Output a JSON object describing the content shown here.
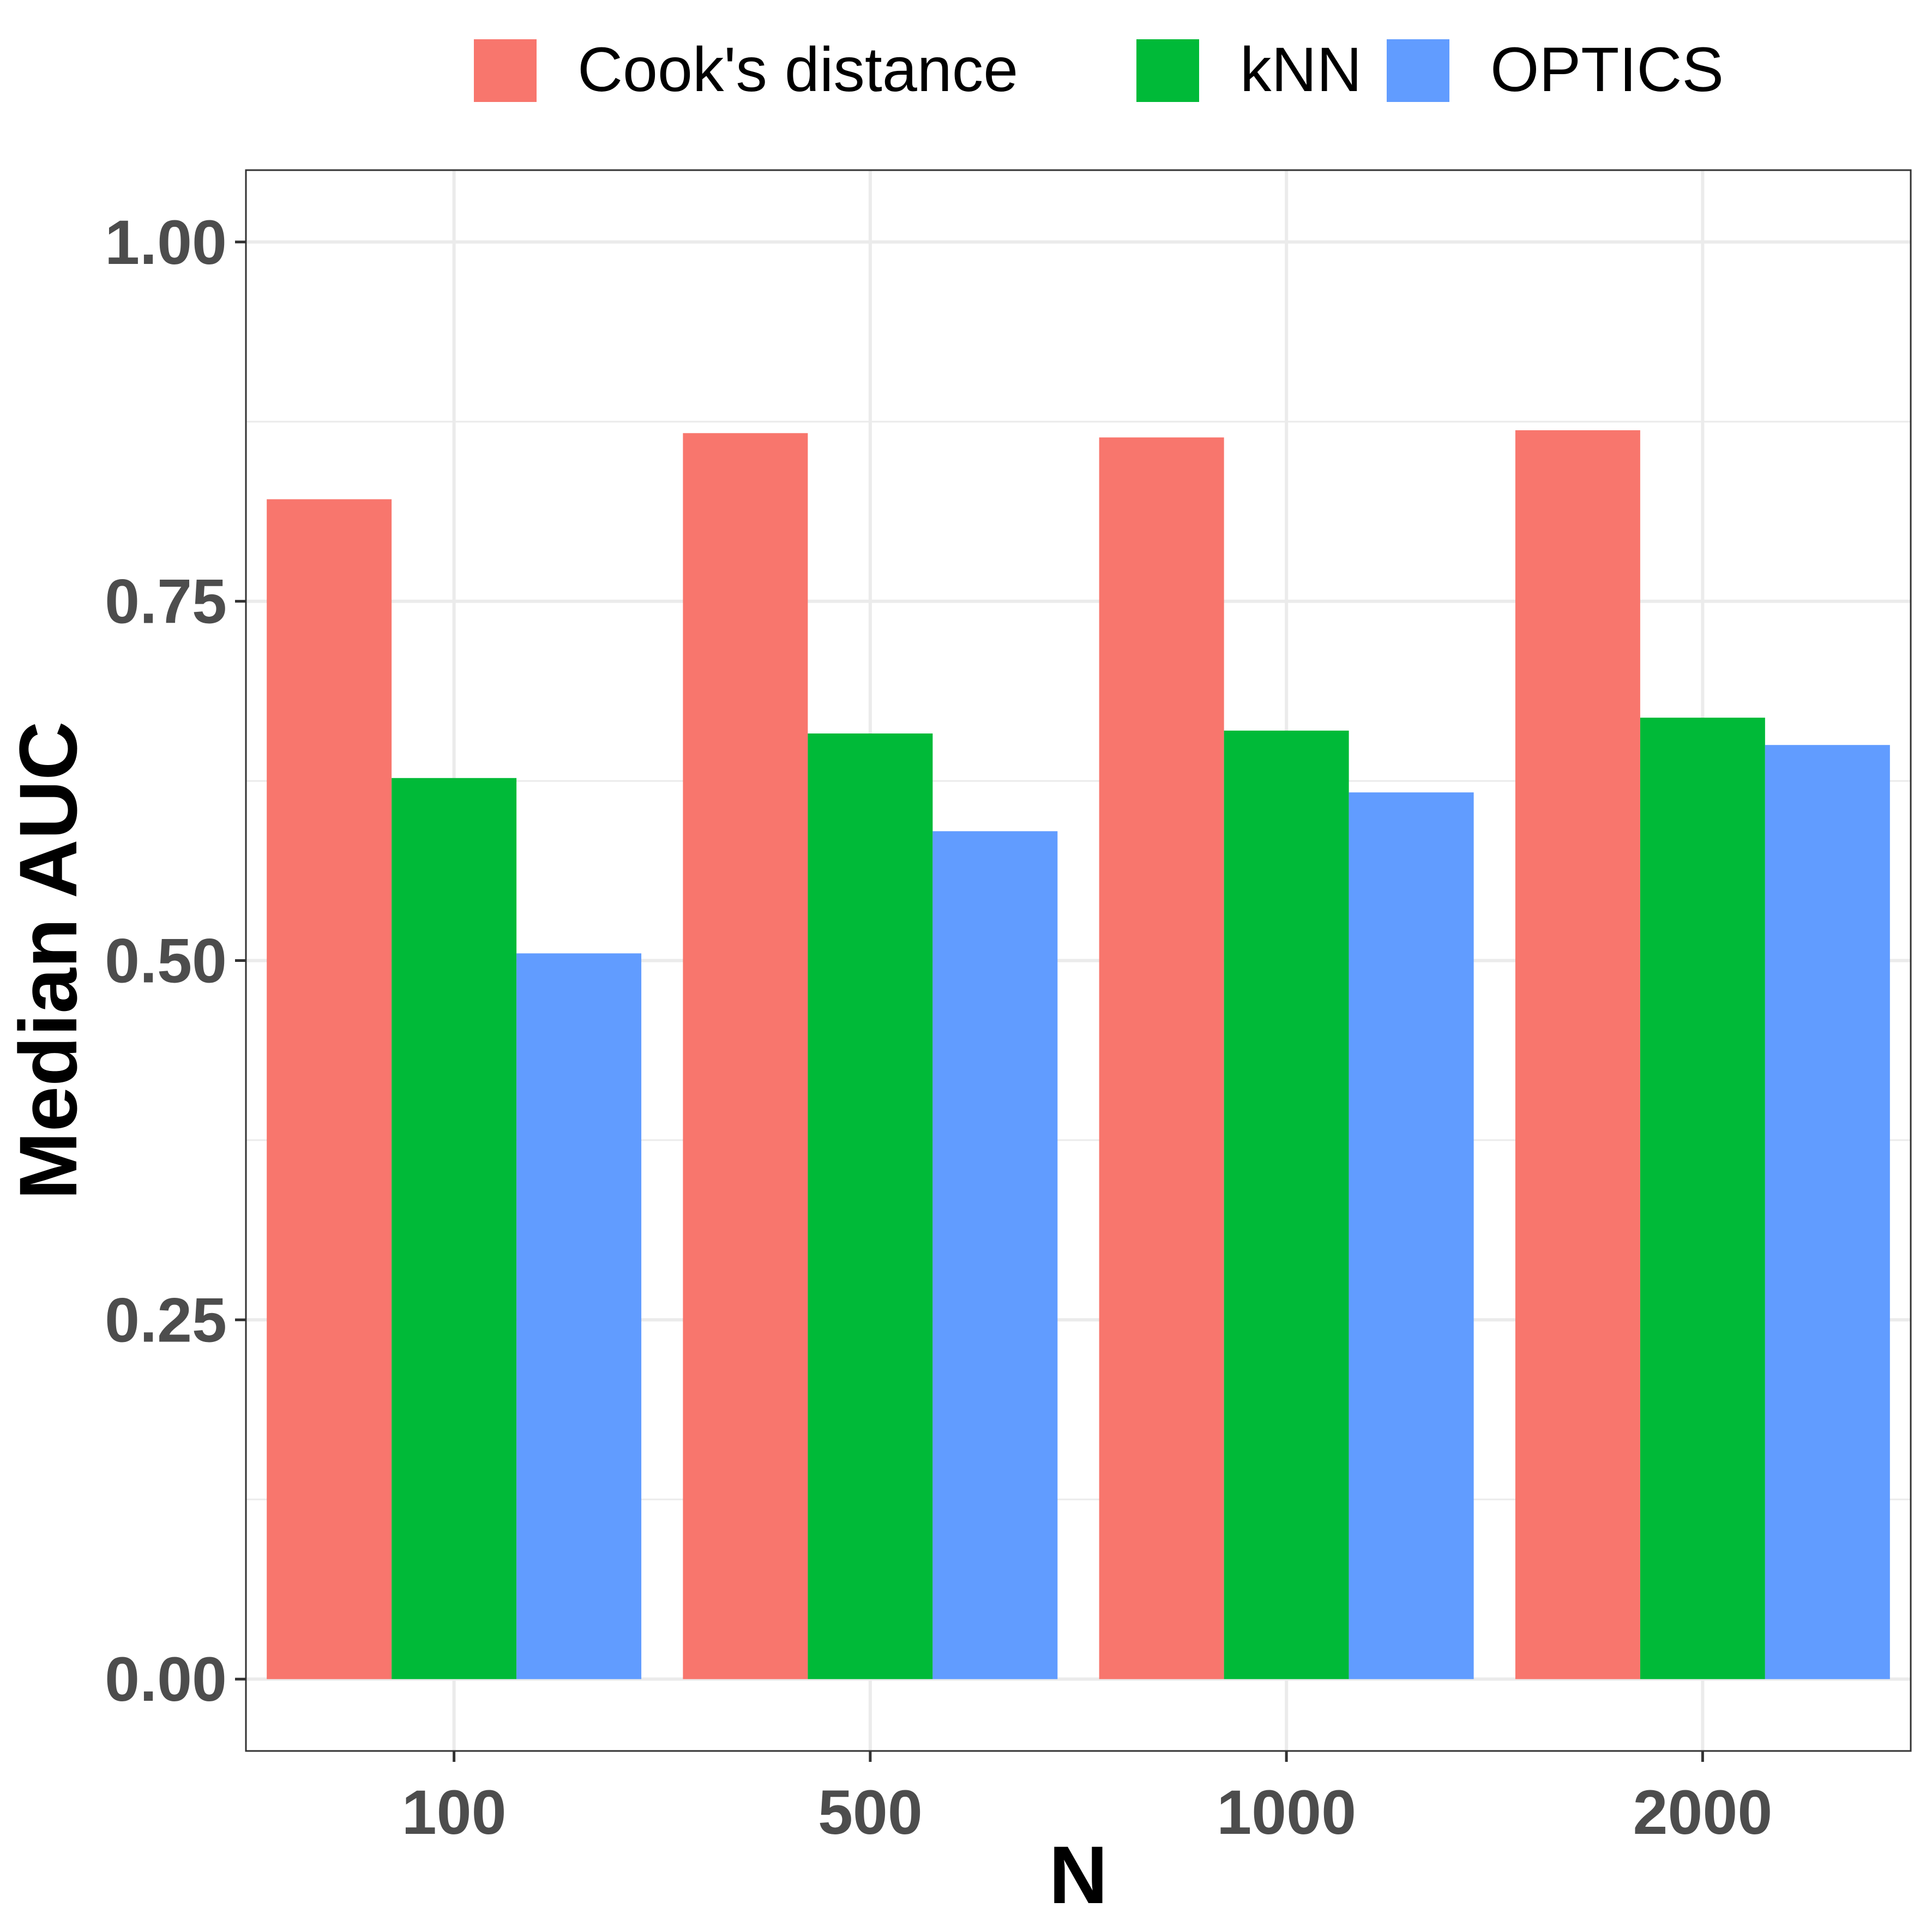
{
  "chart_data": {
    "type": "bar",
    "xlabel": "N",
    "ylabel": "Median AUC",
    "categories": [
      "100",
      "500",
      "1000",
      "2000"
    ],
    "series": [
      {
        "name": "Cook's distance",
        "color": "#F8766D",
        "values": [
          0.821,
          0.867,
          0.864,
          0.869
        ]
      },
      {
        "name": "kNN",
        "color": "#00BA38",
        "values": [
          0.627,
          0.658,
          0.66,
          0.669
        ]
      },
      {
        "name": "OPTICS",
        "color": "#619CFF",
        "values": [
          0.505,
          0.59,
          0.617,
          0.65
        ]
      }
    ],
    "ylim": [
      -0.05,
      1.05
    ],
    "yticks": [
      0,
      0.25,
      0.5,
      0.75,
      1.0
    ],
    "ytick_labels": [
      "0.00",
      "0.25",
      "0.50",
      "0.75",
      "1.00"
    ],
    "grid": true,
    "legend_position": "top"
  }
}
